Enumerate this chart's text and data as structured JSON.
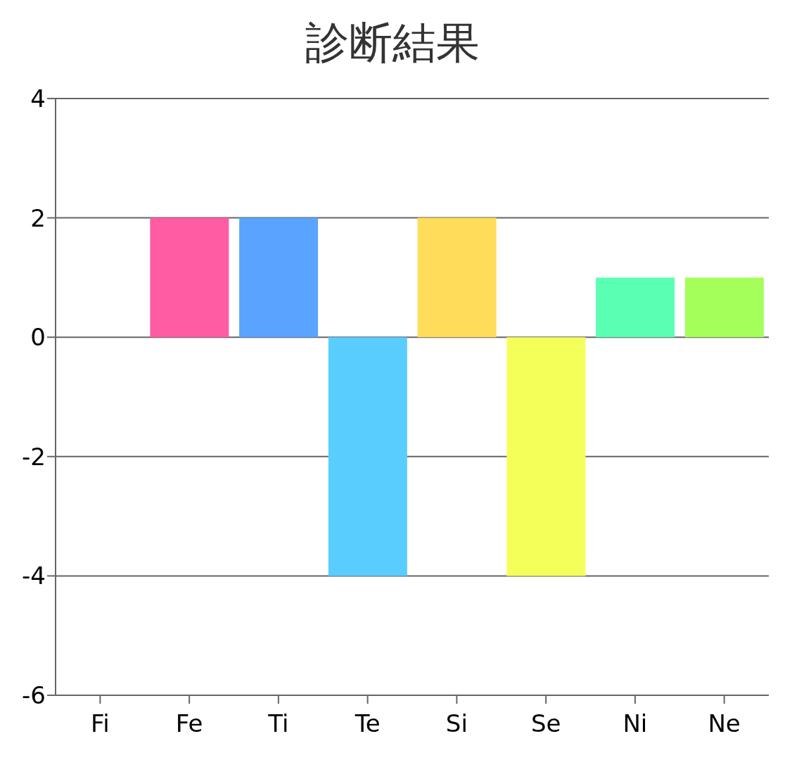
{
  "chart_data": {
    "type": "bar",
    "title": "診断結果",
    "categories": [
      "Fi",
      "Fe",
      "Ti",
      "Te",
      "Si",
      "Se",
      "Ni",
      "Ne"
    ],
    "values": [
      0,
      2,
      2,
      -4,
      2,
      -4,
      1,
      1
    ],
    "colors": [
      "#ff6b6b",
      "#ff5ca3",
      "#5aa4ff",
      "#5acdff",
      "#ffdd5a",
      "#f5ff5a",
      "#5affb4",
      "#a5ff5a"
    ],
    "ylim": [
      -6,
      4
    ],
    "yticks": [
      -6,
      -4,
      -2,
      0,
      2,
      4
    ],
    "grid": "y"
  }
}
